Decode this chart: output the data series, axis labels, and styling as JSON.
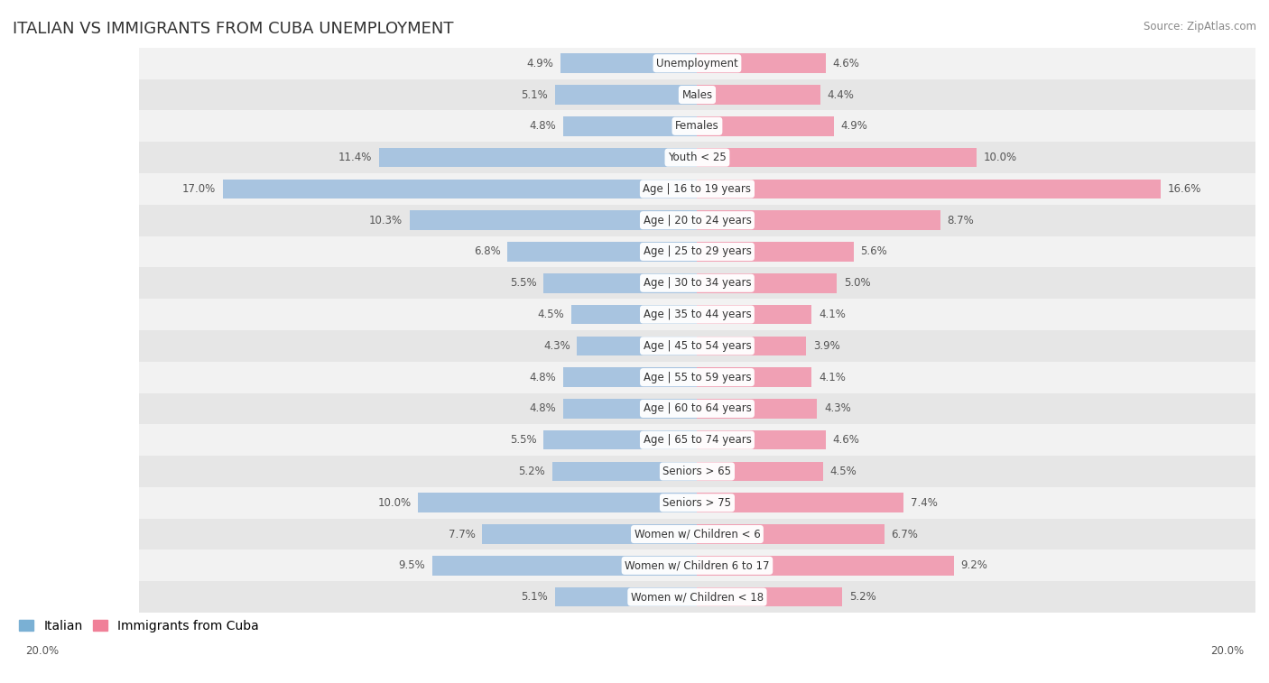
{
  "title": "ITALIAN VS IMMIGRANTS FROM CUBA UNEMPLOYMENT",
  "source": "Source: ZipAtlas.com",
  "categories": [
    "Unemployment",
    "Males",
    "Females",
    "Youth < 25",
    "Age | 16 to 19 years",
    "Age | 20 to 24 years",
    "Age | 25 to 29 years",
    "Age | 30 to 34 years",
    "Age | 35 to 44 years",
    "Age | 45 to 54 years",
    "Age | 55 to 59 years",
    "Age | 60 to 64 years",
    "Age | 65 to 74 years",
    "Seniors > 65",
    "Seniors > 75",
    "Women w/ Children < 6",
    "Women w/ Children 6 to 17",
    "Women w/ Children < 18"
  ],
  "italian": [
    4.9,
    5.1,
    4.8,
    11.4,
    17.0,
    10.3,
    6.8,
    5.5,
    4.5,
    4.3,
    4.8,
    4.8,
    5.5,
    5.2,
    10.0,
    7.7,
    9.5,
    5.1
  ],
  "cuba": [
    4.6,
    4.4,
    4.9,
    10.0,
    16.6,
    8.7,
    5.6,
    5.0,
    4.1,
    3.9,
    4.1,
    4.3,
    4.6,
    4.5,
    7.4,
    6.7,
    9.2,
    5.2
  ],
  "italian_color": "#a8c4e0",
  "cuba_color": "#f0a0b4",
  "legend_italian_color": "#7ab0d4",
  "legend_cuba_color": "#f08098",
  "label_color": "#555555",
  "max_val": 20.0,
  "value_fontsize": 8.5,
  "category_fontsize": 8.5,
  "title_fontsize": 13,
  "legend_fontsize": 10,
  "source_fontsize": 8.5
}
